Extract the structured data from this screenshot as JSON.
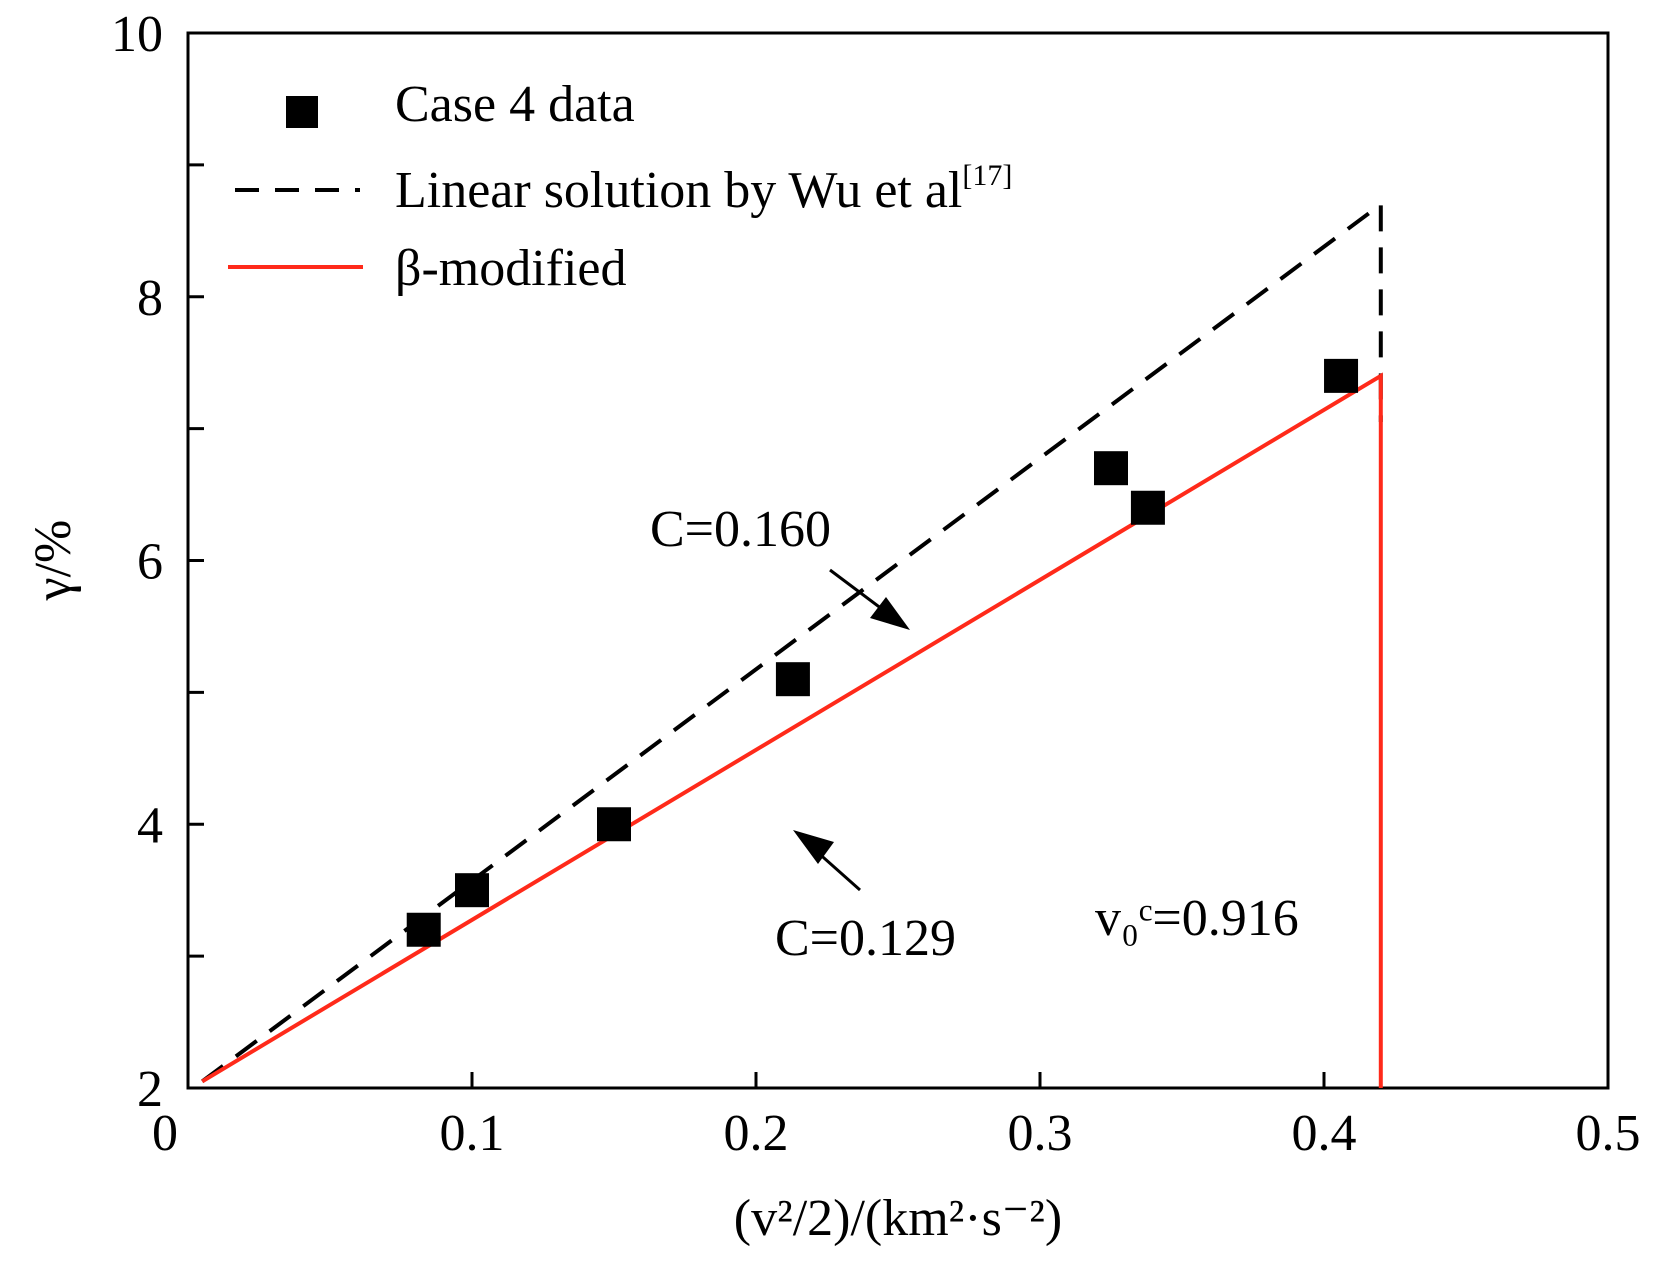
{
  "chart_data": {
    "type": "scatter",
    "xlabel": "(v²/2)/(km²·s⁻²)",
    "ylabel": "γ/%",
    "xlim": [
      0,
      0.5
    ],
    "ylim": [
      2,
      10
    ],
    "x_ticks": [
      "0",
      "0.1",
      "0.2",
      "0.3",
      "0.4",
      "0.5"
    ],
    "y_ticks": [
      "2",
      "4",
      "6",
      "8",
      "10"
    ],
    "grid": false,
    "legend_position": "top-left",
    "series": [
      {
        "name": "Case 4 data",
        "kind": "scatter",
        "color": "#000000",
        "marker": "square",
        "x": [
          0.083,
          0.1,
          0.15,
          0.213,
          0.325,
          0.338,
          0.406
        ],
        "y": [
          3.2,
          3.5,
          4.0,
          5.1,
          6.7,
          6.4,
          7.4
        ]
      },
      {
        "name": "Linear solution by Wu et al[17]",
        "kind": "line",
        "style": "dashed",
        "color": "#000000",
        "x": [
          0.005,
          0.42,
          0.42
        ],
        "y": [
          2.05,
          8.7,
          7.05
        ]
      },
      {
        "name": "β-modified",
        "kind": "line",
        "style": "solid",
        "color": "#ff2a1a",
        "x": [
          0.005,
          0.42,
          0.42
        ],
        "y": [
          2.05,
          7.4,
          2.0
        ]
      }
    ],
    "legend": {
      "items": [
        {
          "label": "Case 4 data",
          "marker": "square",
          "superscript": ""
        },
        {
          "label": "Linear solution by Wu et al",
          "marker": "dashed-line",
          "superscript": "[17]"
        },
        {
          "label": "β-modified",
          "marker": "solid-line",
          "superscript": ""
        }
      ]
    },
    "annotations": [
      {
        "id": "c160",
        "label": "C=0.160"
      },
      {
        "id": "c129",
        "label": "C=0.129"
      },
      {
        "id": "v0c",
        "label": "v₀ᶜ=0.916"
      }
    ]
  }
}
